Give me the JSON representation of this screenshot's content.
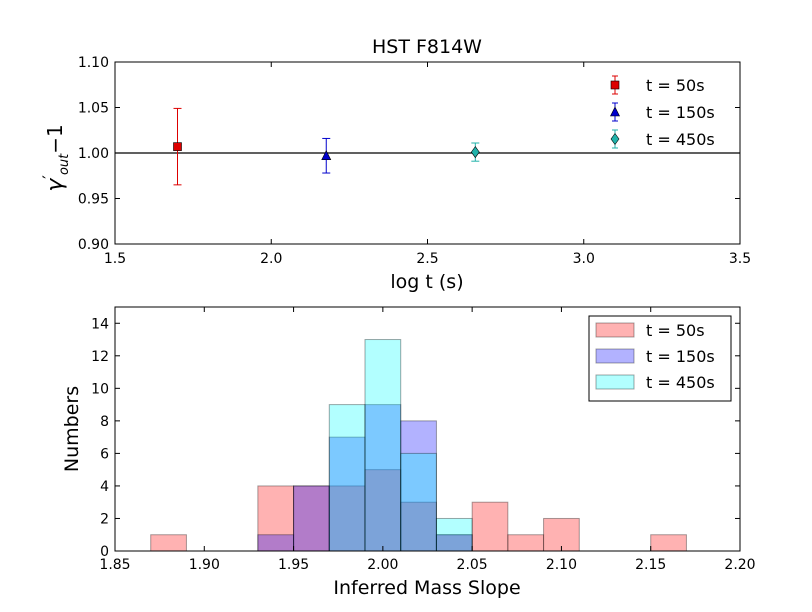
{
  "chart_data": [
    {
      "type": "scatter",
      "title": "HST F814W",
      "xlabel": "log t (s)",
      "ylabel": "γ′ out − 1",
      "ylabel_parts": {
        "gamma": "γ",
        "prime": "′",
        "sub": "out",
        "minus": "−1"
      },
      "xlim": [
        1.5,
        3.5
      ],
      "ylim": [
        0.9,
        1.1
      ],
      "xticks": [
        1.5,
        2.0,
        2.5,
        3.0,
        3.5
      ],
      "xtick_labels": [
        "1.5",
        "2.0",
        "2.5",
        "3.0",
        "3.5"
      ],
      "yticks": [
        0.9,
        0.95,
        1.0,
        1.05,
        1.1
      ],
      "ytick_labels": [
        "0.90",
        "0.95",
        "1.00",
        "1.05",
        "1.10"
      ],
      "reference_line": 1.0,
      "legend_position": "top-right",
      "series": [
        {
          "name": "t = 50s",
          "marker": "square",
          "color": "#dd0000",
          "x": 1.7,
          "y": 1.007,
          "err": 0.042
        },
        {
          "name": "t = 150s",
          "marker": "triangle",
          "color": "#0000cc",
          "x": 2.176,
          "y": 0.997,
          "err": 0.019
        },
        {
          "name": "t = 450s",
          "marker": "diamond",
          "color": "#20b2aa",
          "x": 2.653,
          "y": 1.001,
          "err": 0.01
        }
      ]
    },
    {
      "type": "histogram",
      "xlabel": "Inferred Mass Slope",
      "ylabel": "Numbers",
      "xlim": [
        1.85,
        2.2
      ],
      "ylim": [
        0,
        15
      ],
      "xticks": [
        1.85,
        1.9,
        1.95,
        2.0,
        2.05,
        2.1,
        2.15,
        2.2
      ],
      "xtick_labels": [
        "1.85",
        "1.90",
        "1.95",
        "2.00",
        "2.05",
        "2.10",
        "2.15",
        "2.20"
      ],
      "yticks": [
        0,
        2,
        4,
        6,
        8,
        10,
        12,
        14
      ],
      "ytick_labels": [
        "0",
        "2",
        "4",
        "6",
        "8",
        "10",
        "12",
        "14"
      ],
      "legend_position": "top-right",
      "series": [
        {
          "name": "t = 50s",
          "color": "#ff0000",
          "alpha": 0.3,
          "bins": [
            {
              "x0": 1.87,
              "x1": 1.89,
              "count": 1
            },
            {
              "x0": 1.93,
              "x1": 1.95,
              "count": 4
            },
            {
              "x0": 1.95,
              "x1": 1.97,
              "count": 4
            },
            {
              "x0": 1.97,
              "x1": 1.99,
              "count": 4
            },
            {
              "x0": 1.99,
              "x1": 2.01,
              "count": 5
            },
            {
              "x0": 2.01,
              "x1": 2.03,
              "count": 3
            },
            {
              "x0": 2.03,
              "x1": 2.05,
              "count": 1
            },
            {
              "x0": 2.05,
              "x1": 2.07,
              "count": 3
            },
            {
              "x0": 2.07,
              "x1": 2.09,
              "count": 1
            },
            {
              "x0": 2.09,
              "x1": 2.11,
              "count": 2
            },
            {
              "x0": 2.15,
              "x1": 2.17,
              "count": 1
            }
          ]
        },
        {
          "name": "t = 150s",
          "color": "#0000ff",
          "alpha": 0.3,
          "bins": [
            {
              "x0": 1.93,
              "x1": 1.95,
              "count": 1
            },
            {
              "x0": 1.95,
              "x1": 1.97,
              "count": 4
            },
            {
              "x0": 1.97,
              "x1": 1.99,
              "count": 7
            },
            {
              "x0": 1.99,
              "x1": 2.01,
              "count": 9
            },
            {
              "x0": 2.01,
              "x1": 2.03,
              "count": 8
            },
            {
              "x0": 2.03,
              "x1": 2.05,
              "count": 1
            }
          ]
        },
        {
          "name": "t = 450s",
          "color": "#00ffff",
          "alpha": 0.3,
          "bins": [
            {
              "x0": 1.97,
              "x1": 1.99,
              "count": 9
            },
            {
              "x0": 1.99,
              "x1": 2.01,
              "count": 13
            },
            {
              "x0": 2.01,
              "x1": 2.03,
              "count": 6
            },
            {
              "x0": 2.03,
              "x1": 2.05,
              "count": 2
            }
          ]
        }
      ]
    }
  ]
}
